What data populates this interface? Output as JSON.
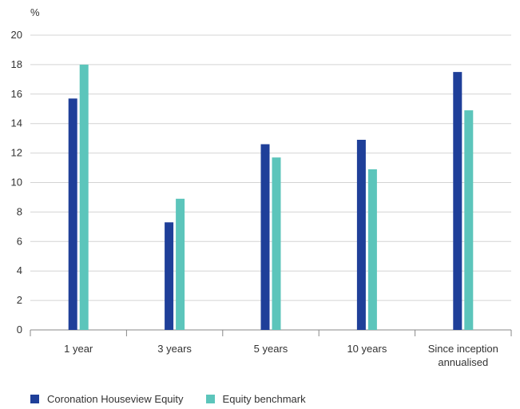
{
  "chart_data": {
    "type": "bar",
    "ylabel": "%",
    "ylim": [
      0,
      20
    ],
    "yticks": [
      "0",
      "2",
      "4",
      "6",
      "8",
      "10",
      "12",
      "14",
      "16",
      "18",
      "20"
    ],
    "categories": [
      [
        "1 year"
      ],
      [
        "3 years"
      ],
      [
        "5 years"
      ],
      [
        "10 years"
      ],
      [
        "Since inception",
        "annualised"
      ]
    ],
    "series": [
      {
        "name": "Coronation Houseview Equity",
        "color": "#1f3f99",
        "values": [
          15.7,
          7.3,
          12.6,
          12.9,
          17.5
        ]
      },
      {
        "name": "Equity benchmark",
        "color": "#5cc5bb",
        "values": [
          18.0,
          8.9,
          11.7,
          10.9,
          14.9
        ]
      }
    ],
    "grid": true,
    "legend": "bottom-left"
  }
}
